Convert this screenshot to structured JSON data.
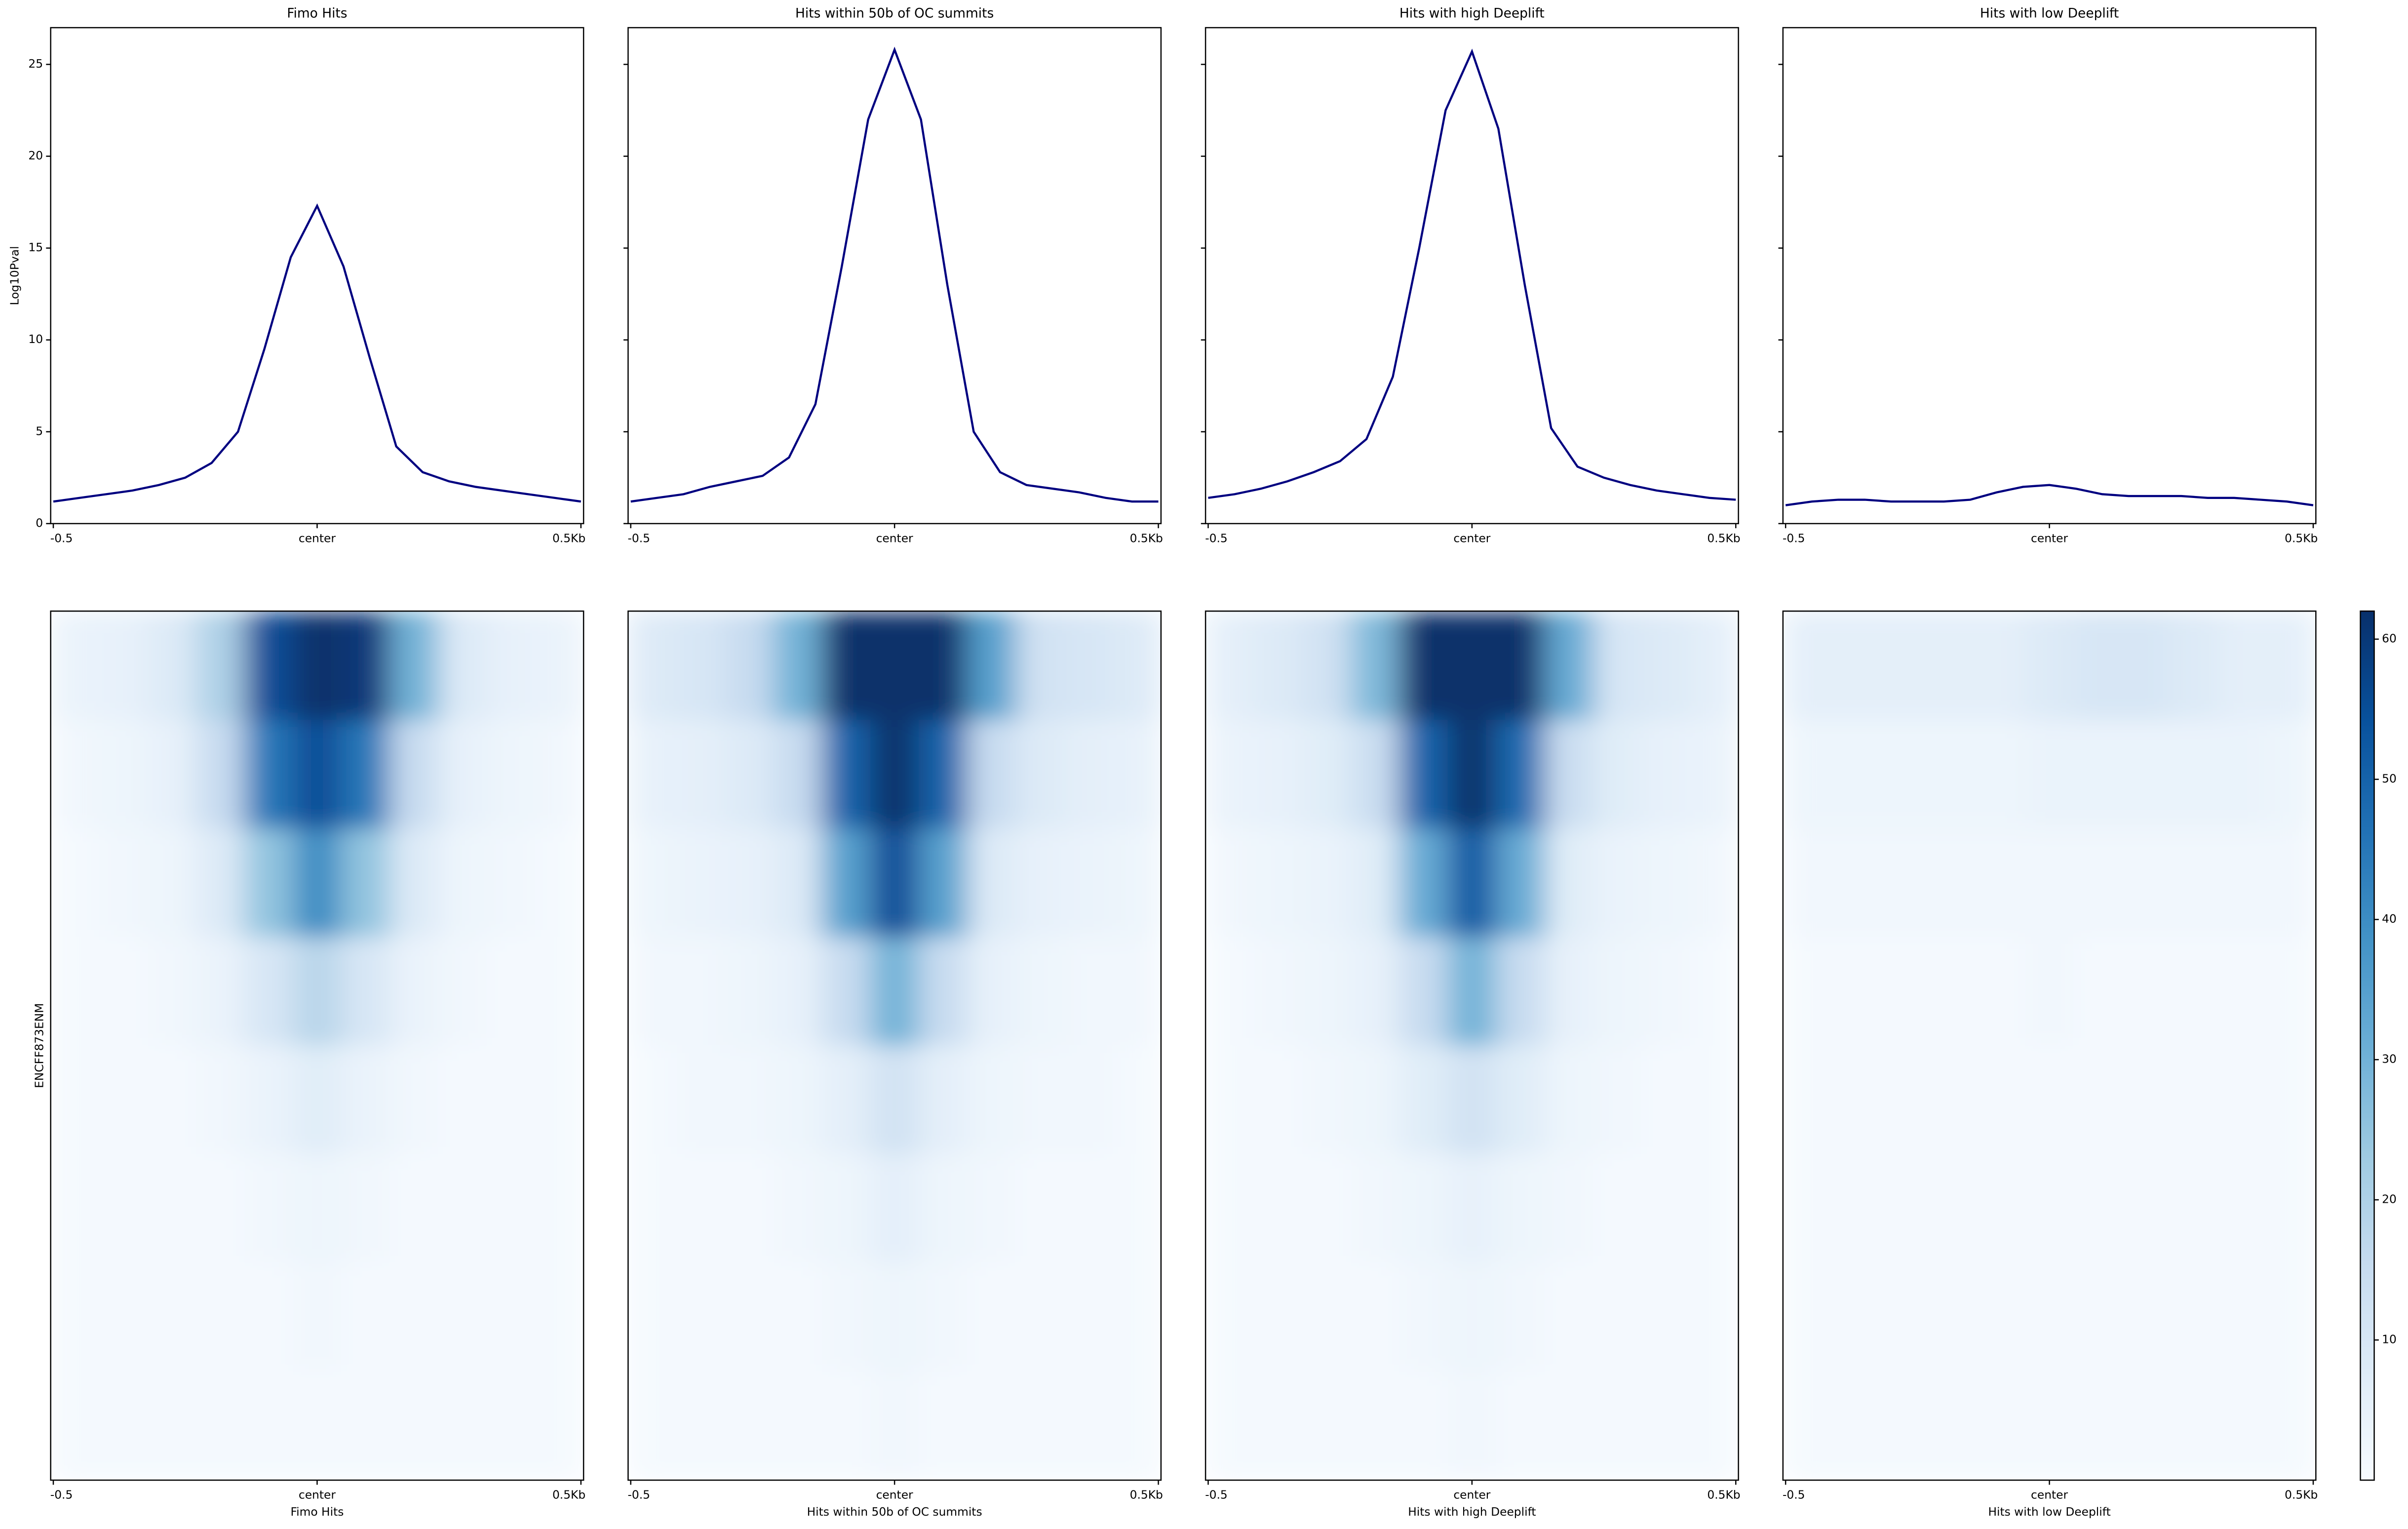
{
  "chart_data": [
    {
      "type": "line",
      "title": "Fimo Hits",
      "ylabel": "Log10Pval",
      "x": [
        -0.5,
        -0.45,
        -0.4,
        -0.35,
        -0.3,
        -0.25,
        -0.2,
        -0.15,
        -0.1,
        -0.05,
        0,
        0.05,
        0.1,
        0.15,
        0.2,
        0.25,
        0.3,
        0.35,
        0.4,
        0.45,
        0.5
      ],
      "series": [
        {
          "color": "#000080",
          "values": [
            1.2,
            1.4,
            1.6,
            1.8,
            2.1,
            2.5,
            3.3,
            5.0,
            9.5,
            14.5,
            17.3,
            14,
            9,
            4.2,
            2.8,
            2.3,
            2.0,
            1.8,
            1.6,
            1.4,
            1.2
          ]
        }
      ],
      "xlim": [
        -0.505,
        0.505
      ],
      "xticks": [
        -0.5,
        {
          "value": 0,
          "label": "center"
        },
        {
          "value": 0.5,
          "label": "0.5Kb"
        }
      ],
      "ylim": [
        0,
        27
      ],
      "yticks": [
        0,
        5,
        10,
        15,
        20,
        25
      ],
      "ytick_labels": true
    },
    {
      "type": "line",
      "title": "Hits within 50b of OC summits",
      "x": [
        -0.5,
        -0.45,
        -0.4,
        -0.35,
        -0.3,
        -0.25,
        -0.2,
        -0.15,
        -0.1,
        -0.05,
        0,
        0.05,
        0.1,
        0.15,
        0.2,
        0.25,
        0.3,
        0.35,
        0.4,
        0.45,
        0.5
      ],
      "series": [
        {
          "color": "#000080",
          "values": [
            1.2,
            1.4,
            1.6,
            2.0,
            2.3,
            2.6,
            3.6,
            6.5,
            14,
            22,
            25.8,
            22,
            13,
            5,
            2.8,
            2.1,
            1.9,
            1.7,
            1.4,
            1.2,
            1.2
          ]
        }
      ],
      "xlim": [
        -0.505,
        0.505
      ],
      "xticks": [
        -0.5,
        {
          "value": 0,
          "label": "center"
        },
        {
          "value": 0.5,
          "label": "0.5Kb"
        }
      ],
      "ylim": [
        0,
        27
      ],
      "yticks": [
        0,
        5,
        10,
        15,
        20,
        25
      ],
      "ytick_labels": false
    },
    {
      "type": "line",
      "title": "Hits with high Deeplift",
      "x": [
        -0.5,
        -0.45,
        -0.4,
        -0.35,
        -0.3,
        -0.25,
        -0.2,
        -0.15,
        -0.1,
        -0.05,
        0,
        0.05,
        0.1,
        0.15,
        0.2,
        0.25,
        0.3,
        0.35,
        0.4,
        0.45,
        0.5
      ],
      "series": [
        {
          "color": "#000080",
          "values": [
            1.4,
            1.6,
            1.9,
            2.3,
            2.8,
            3.4,
            4.6,
            8,
            15,
            22.5,
            25.7,
            21.5,
            13,
            5.2,
            3.1,
            2.5,
            2.1,
            1.8,
            1.6,
            1.4,
            1.3
          ]
        }
      ],
      "xlim": [
        -0.505,
        0.505
      ],
      "xticks": [
        -0.5,
        {
          "value": 0,
          "label": "center"
        },
        {
          "value": 0.5,
          "label": "0.5Kb"
        }
      ],
      "ylim": [
        0,
        27
      ],
      "yticks": [
        0,
        5,
        10,
        15,
        20,
        25
      ],
      "ytick_labels": false
    },
    {
      "type": "line",
      "title": "Hits with low Deeplift",
      "x": [
        -0.5,
        -0.45,
        -0.4,
        -0.35,
        -0.3,
        -0.25,
        -0.2,
        -0.15,
        -0.1,
        -0.05,
        0,
        0.05,
        0.1,
        0.15,
        0.2,
        0.25,
        0.3,
        0.35,
        0.4,
        0.45,
        0.5
      ],
      "series": [
        {
          "color": "#000080",
          "values": [
            1.0,
            1.2,
            1.3,
            1.3,
            1.2,
            1.2,
            1.2,
            1.3,
            1.7,
            2.0,
            2.1,
            1.9,
            1.6,
            1.5,
            1.5,
            1.5,
            1.4,
            1.4,
            1.3,
            1.2,
            1.0
          ]
        }
      ],
      "xlim": [
        -0.505,
        0.505
      ],
      "xticks": [
        -0.5,
        {
          "value": 0,
          "label": "center"
        },
        {
          "value": 0.5,
          "label": "0.5Kb"
        }
      ],
      "ylim": [
        0,
        27
      ],
      "yticks": [
        0,
        5,
        10,
        15,
        20,
        25
      ],
      "ytick_labels": false
    },
    {
      "type": "heatmap",
      "xlabel": "Fimo Hits",
      "ylabel": "ENCFF873ENM",
      "xlim": [
        -0.505,
        0.505
      ],
      "xticks": [
        -0.5,
        {
          "value": 0,
          "label": "center"
        },
        {
          "value": 0.5,
          "label": "0.5Kb"
        }
      ],
      "values": [
        [
          4,
          5,
          8,
          20,
          55,
          62,
          60,
          30,
          8,
          5,
          4
        ],
        [
          2,
          3,
          5,
          15,
          45,
          55,
          45,
          15,
          5,
          3,
          2
        ],
        [
          1,
          2,
          3,
          8,
          25,
          40,
          25,
          8,
          3,
          2,
          1
        ],
        [
          1,
          1,
          2,
          4,
          10,
          18,
          10,
          4,
          2,
          1,
          1
        ],
        [
          1,
          1,
          1,
          2,
          4,
          7,
          4,
          2,
          1,
          1,
          1
        ],
        [
          1,
          1,
          1,
          1,
          2,
          3,
          2,
          1,
          1,
          1,
          1
        ],
        [
          1,
          1,
          1,
          1,
          1,
          2,
          1,
          1,
          1,
          1,
          1
        ],
        [
          1,
          1,
          1,
          1,
          1,
          1,
          1,
          1,
          1,
          1,
          1
        ]
      ]
    },
    {
      "type": "heatmap",
      "xlabel": "Hits within 50b of OC summits",
      "xlim": [
        -0.505,
        0.505
      ],
      "xticks": [
        -0.5,
        {
          "value": 0,
          "label": "center"
        },
        {
          "value": 0.5,
          "label": "0.5Kb"
        }
      ],
      "values": [
        [
          8,
          10,
          15,
          30,
          62,
          62,
          62,
          35,
          12,
          10,
          8
        ],
        [
          5,
          6,
          8,
          15,
          50,
          62,
          50,
          15,
          8,
          6,
          5
        ],
        [
          3,
          4,
          5,
          8,
          35,
          55,
          35,
          8,
          5,
          4,
          3
        ],
        [
          2,
          2,
          3,
          5,
          15,
          30,
          15,
          5,
          3,
          2,
          2
        ],
        [
          1,
          2,
          2,
          3,
          6,
          12,
          6,
          3,
          2,
          2,
          1
        ],
        [
          1,
          1,
          1,
          2,
          3,
          6,
          3,
          2,
          1,
          1,
          1
        ],
        [
          1,
          1,
          1,
          1,
          2,
          3,
          2,
          1,
          1,
          1,
          1
        ],
        [
          1,
          1,
          1,
          1,
          1,
          2,
          1,
          1,
          1,
          1,
          1
        ]
      ]
    },
    {
      "type": "heatmap",
      "xlabel": "Hits with high Deeplift",
      "xlim": [
        -0.505,
        0.505
      ],
      "xticks": [
        -0.5,
        {
          "value": 0,
          "label": "center"
        },
        {
          "value": 0.5,
          "label": "0.5Kb"
        }
      ],
      "values": [
        [
          6,
          8,
          12,
          28,
          62,
          62,
          62,
          32,
          10,
          8,
          6
        ],
        [
          4,
          5,
          7,
          14,
          50,
          62,
          48,
          14,
          7,
          5,
          4
        ],
        [
          2,
          3,
          4,
          7,
          32,
          52,
          32,
          7,
          4,
          3,
          2
        ],
        [
          1,
          2,
          3,
          5,
          15,
          30,
          15,
          5,
          3,
          2,
          1
        ],
        [
          1,
          1,
          2,
          3,
          7,
          12,
          7,
          3,
          2,
          1,
          1
        ],
        [
          1,
          1,
          1,
          2,
          3,
          5,
          3,
          2,
          1,
          1,
          1
        ],
        [
          1,
          1,
          1,
          1,
          2,
          3,
          2,
          1,
          1,
          1,
          1
        ],
        [
          1,
          1,
          1,
          1,
          1,
          2,
          1,
          1,
          1,
          1,
          1
        ]
      ]
    },
    {
      "type": "heatmap",
      "xlabel": "Hits with low Deeplift",
      "xlim": [
        -0.505,
        0.505
      ],
      "xticks": [
        -0.5,
        {
          "value": 0,
          "label": "center"
        },
        {
          "value": 0.5,
          "label": "0.5Kb"
        }
      ],
      "values": [
        [
          6,
          6,
          6,
          6,
          6,
          8,
          10,
          10,
          8,
          6,
          6
        ],
        [
          3,
          3,
          3,
          3,
          3,
          4,
          4,
          4,
          4,
          4,
          3
        ],
        [
          2,
          2,
          2,
          2,
          2,
          2,
          2,
          2,
          2,
          2,
          2
        ],
        [
          1,
          1,
          1,
          1,
          1,
          2,
          1,
          1,
          1,
          1,
          1
        ],
        [
          1,
          1,
          1,
          1,
          1,
          1,
          1,
          1,
          1,
          1,
          1
        ],
        [
          1,
          1,
          1,
          1,
          1,
          1,
          1,
          1,
          1,
          1,
          1
        ],
        [
          1,
          1,
          1,
          1,
          1,
          1,
          1,
          1,
          1,
          1,
          1
        ],
        [
          1,
          1,
          1,
          1,
          1,
          1,
          1,
          1,
          1,
          1,
          1
        ]
      ]
    },
    {
      "type": "colorbar",
      "ylim": [
        0,
        62
      ],
      "yticks": [
        10,
        20,
        30,
        40,
        50,
        60
      ],
      "cmap": [
        "#f7fbff",
        "#deebf7",
        "#c6dbef",
        "#9ecae1",
        "#6baed6",
        "#4292c6",
        "#2171b5",
        "#08519c",
        "#08306b"
      ]
    }
  ]
}
